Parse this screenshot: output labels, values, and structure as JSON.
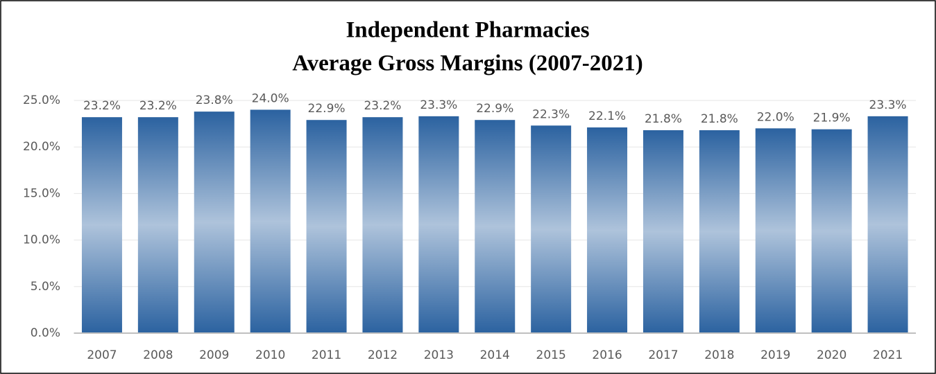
{
  "chart_data": {
    "type": "bar",
    "title": [
      "Independent Pharmacies",
      "Average Gross Margins (2007-2021)"
    ],
    "categories": [
      "2007",
      "2008",
      "2009",
      "2010",
      "2011",
      "2012",
      "2013",
      "2014",
      "2015",
      "2016",
      "2017",
      "2018",
      "2019",
      "2020",
      "2021"
    ],
    "values": [
      23.2,
      23.2,
      23.8,
      24.0,
      22.9,
      23.2,
      23.3,
      22.9,
      22.3,
      22.1,
      21.8,
      21.8,
      22.0,
      21.9,
      23.3
    ],
    "value_labels": [
      "23.2%",
      "23.2%",
      "23.8%",
      "24.0%",
      "22.9%",
      "23.2%",
      "23.3%",
      "22.9%",
      "22.3%",
      "22.1%",
      "21.8%",
      "21.8%",
      "22.0%",
      "21.9%",
      "23.3%"
    ],
    "color": "#2b62a0",
    "ylim": [
      0,
      25
    ],
    "yticks": [
      {
        "value": 0,
        "label": "0.0%"
      },
      {
        "value": 5,
        "label": "5.0%"
      },
      {
        "value": 10,
        "label": "10.0%"
      },
      {
        "value": 15,
        "label": "15.0%"
      },
      {
        "value": 20,
        "label": "20.0%"
      },
      {
        "value": 25,
        "label": "25.0%"
      }
    ],
    "grid": true
  }
}
